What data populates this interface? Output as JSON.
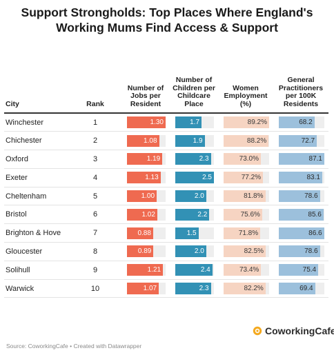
{
  "title": "Support Strongholds: Top Places Where England's Working Mums Find Access & Support",
  "columns": {
    "city": "City",
    "rank": "Rank",
    "jobs": "Number of Jobs per Resident",
    "children": "Number of Children per Childcare Place",
    "women": "Women Employment (%)",
    "gp": "General Practitioners per 100K Residents"
  },
  "colors": {
    "jobs": "#ef6a50",
    "children": "#3291b5",
    "women": "#f6d4c2",
    "gp": "#9cc0dc",
    "track": "#eeeeee"
  },
  "chart_data": {
    "type": "table",
    "rows": [
      {
        "city": "Winchester",
        "rank": "1",
        "jobs": "1.30",
        "children": "1.7",
        "women": "89.2%",
        "gp": "68.2"
      },
      {
        "city": "Chichester",
        "rank": "2",
        "jobs": "1.08",
        "children": "1.9",
        "women": "88.2%",
        "gp": "72.7"
      },
      {
        "city": "Oxford",
        "rank": "3",
        "jobs": "1.19",
        "children": "2.3",
        "women": "73.0%",
        "gp": "87.1"
      },
      {
        "city": "Exeter",
        "rank": "4",
        "jobs": "1.13",
        "children": "2.5",
        "women": "77.2%",
        "gp": "83.1"
      },
      {
        "city": "Cheltenham",
        "rank": "5",
        "jobs": "1.00",
        "children": "2.0",
        "women": "81.8%",
        "gp": "78.6"
      },
      {
        "city": "Bristol",
        "rank": "6",
        "jobs": "1.02",
        "children": "2.2",
        "women": "75.6%",
        "gp": "85.6"
      },
      {
        "city": "Brighton & Hove",
        "rank": "7",
        "jobs": "0.88",
        "children": "1.5",
        "women": "71.8%",
        "gp": "86.6"
      },
      {
        "city": "Gloucester",
        "rank": "8",
        "jobs": "0.89",
        "children": "2.0",
        "women": "82.5%",
        "gp": "78.6"
      },
      {
        "city": "Solihull",
        "rank": "9",
        "jobs": "1.21",
        "children": "2.4",
        "women": "73.4%",
        "gp": "75.4"
      },
      {
        "city": "Warwick",
        "rank": "10",
        "jobs": "1.07",
        "children": "2.3",
        "women": "82.2%",
        "gp": "69.4"
      }
    ],
    "bar_max": {
      "jobs": 1.3,
      "children": 2.5,
      "women": 89.2,
      "gp": 87.1
    }
  },
  "logo": {
    "text": "CoworkingCafe",
    "icon": "coworkingcafe-logo-icon"
  },
  "source": "Source: CoworkingCafe • Created with Datawrapper"
}
